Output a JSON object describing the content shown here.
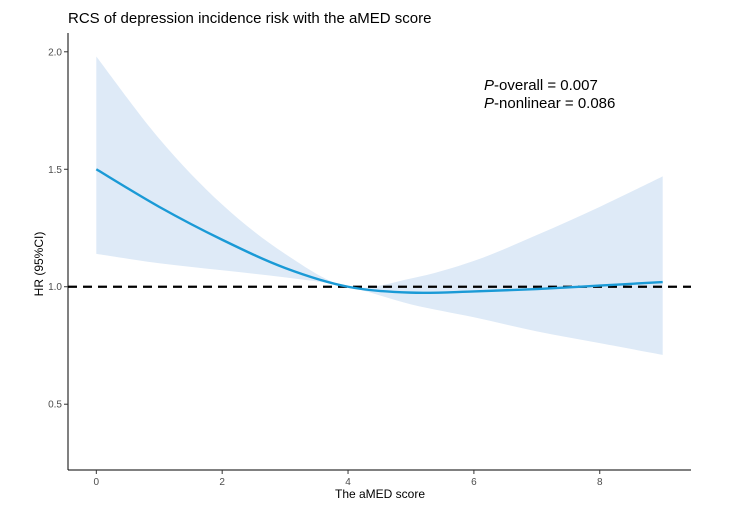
{
  "chart_data": {
    "type": "line",
    "title": "RCS of depression incidence risk with the aMED score",
    "xlabel": "The aMED score",
    "ylabel": "HR (95%CI)",
    "xlim": [
      -0.45,
      9.45
    ],
    "ylim": [
      0.22,
      2.08
    ],
    "x_ticks": [
      0,
      2,
      4,
      6,
      8
    ],
    "x_tick_labels": [
      "0",
      "2",
      "4",
      "6",
      "8"
    ],
    "y_ticks": [
      0.5,
      1.0,
      1.5,
      2.0
    ],
    "y_tick_labels": [
      "0.5",
      "1.0",
      "1.5",
      "2.0"
    ],
    "grid": false,
    "reference_line": {
      "y": 1.0,
      "style": "dashed",
      "color": "#000000"
    },
    "series": [
      {
        "name": "HR",
        "color": "#1a9ad6",
        "x": [
          0,
          1,
          2,
          3,
          4,
          5,
          6,
          7,
          8,
          9
        ],
        "y": [
          1.5,
          1.34,
          1.2,
          1.08,
          1.0,
          0.975,
          0.98,
          0.99,
          1.005,
          1.02
        ],
        "lower": [
          1.14,
          1.1,
          1.07,
          1.04,
          1.0,
          0.925,
          0.87,
          0.81,
          0.76,
          0.71
        ],
        "upper": [
          1.98,
          1.63,
          1.35,
          1.14,
          1.0,
          1.035,
          1.11,
          1.22,
          1.34,
          1.47
        ]
      }
    ],
    "band_color": "#deeaf7",
    "annotations": [
      {
        "italic": "P",
        "text": "-overall = 0.007",
        "position": "top-right"
      },
      {
        "italic": "P",
        "text": "-nonlinear = 0.086",
        "position": "top-right"
      }
    ]
  }
}
